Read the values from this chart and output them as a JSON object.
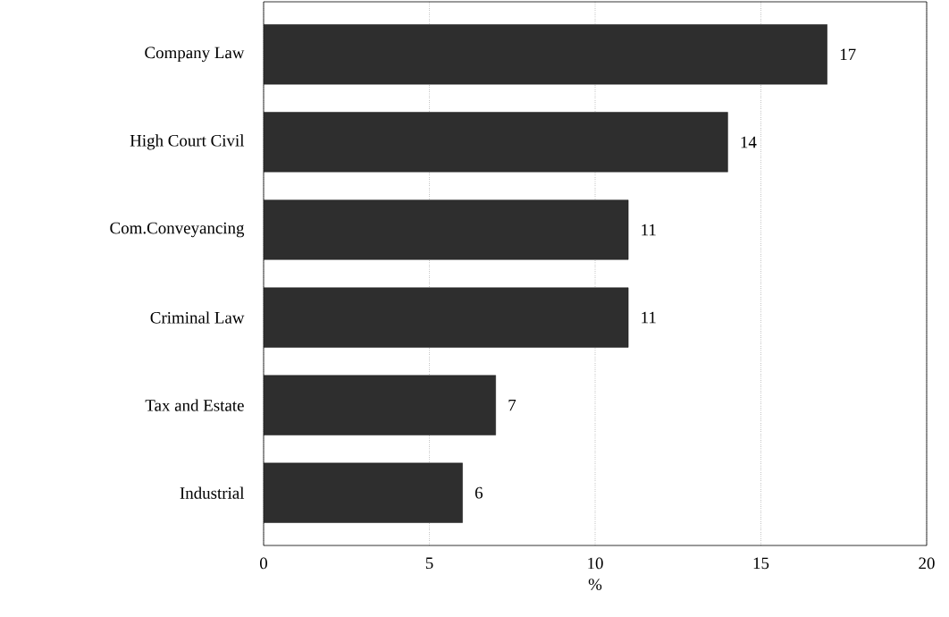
{
  "chart_data": {
    "type": "bar",
    "orientation": "horizontal",
    "xlabel": "%",
    "categories": [
      "Company Law",
      "High Court Civil",
      "Com.Conveyancing",
      "Criminal Law",
      "Tax and Estate",
      "Industrial"
    ],
    "values": [
      17,
      14,
      11,
      11,
      7,
      6
    ],
    "color": "#2e2e2e",
    "xlim": [
      0,
      20
    ],
    "xticks": [
      0,
      5,
      10,
      15,
      20
    ],
    "grid": "x",
    "data_labels": true
  }
}
